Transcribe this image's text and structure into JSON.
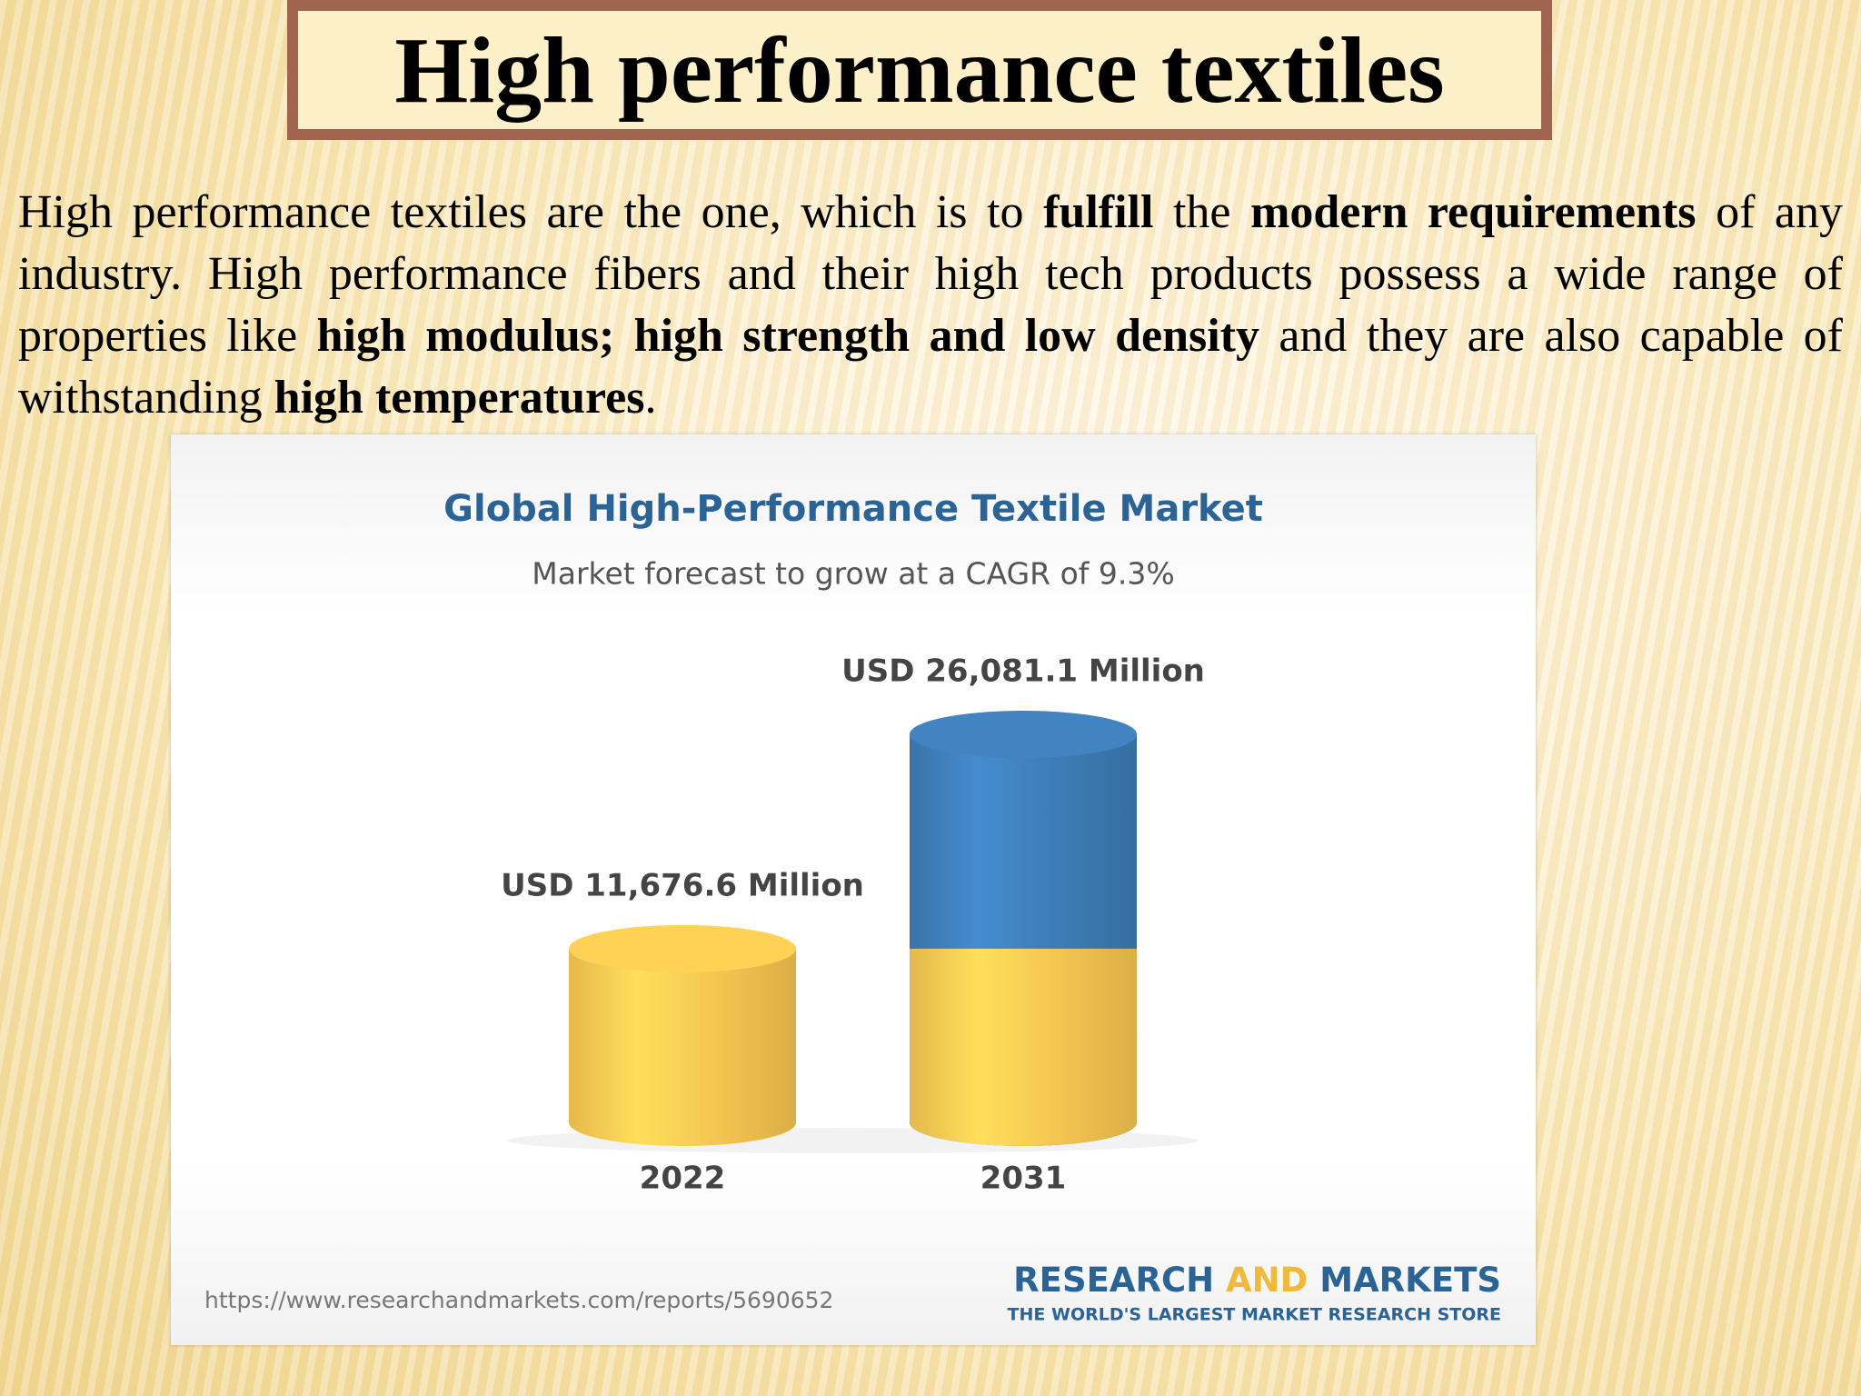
{
  "header": {
    "title": "High performance textiles"
  },
  "paragraph": [
    {
      "text": "High performance textiles are the one, which is to ",
      "bold": false
    },
    {
      "text": "fulfill",
      "bold": true
    },
    {
      "text": " the ",
      "bold": false
    },
    {
      "text": "modern requirements",
      "bold": true
    },
    {
      "text": " of any industry. High performance fibers and their high tech products possess a wide range of properties like ",
      "bold": false
    },
    {
      "text": "high modulus; high strength and low density",
      "bold": true
    },
    {
      "text": " and they are also capable of withstanding ",
      "bold": false
    },
    {
      "text": "high temperatures",
      "bold": true
    },
    {
      "text": ".",
      "bold": false
    }
  ],
  "chart_data": {
    "type": "cylinder",
    "title": "Global High-Performance Textile Market",
    "subtitle": "Market forecast to grow at a CAGR of 9.3%",
    "categories": [
      "2022",
      "2031"
    ],
    "values": [
      11676.6,
      26081.1
    ],
    "value_labels": [
      "USD 11,676.6 Million",
      "USD 26,081.1 Million"
    ],
    "colors": [
      "#f2c24f",
      "#3c7ab3"
    ]
  },
  "footer": {
    "url": "https://www.researchandmarkets.com/reports/5690652",
    "brand": [
      "RESEARCH",
      "AND",
      "MARKETS"
    ],
    "tagline": "THE WORLD'S LARGEST MARKET RESEARCH STORE"
  }
}
